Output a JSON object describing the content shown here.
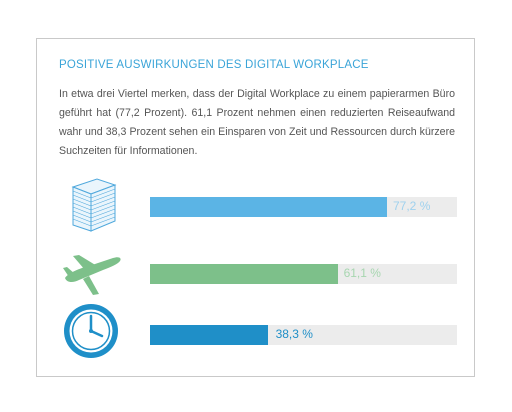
{
  "title": "POSITIVE AUSWIRKUNGEN DES DIGITAL WORKPLACE",
  "description": "In etwa drei Viertel merken, dass der Digital Workplace zu einem papierarmen Büro geführt hat (77,2 Prozent). 61,1 Prozent nehmen einen reduzierten Reiseaufwand wahr und 38,3 Prozent sehen ein Einsparen von Zeit und Ressourcen durch kürzere Suchzeiten für Informationen.",
  "chart_data": {
    "type": "bar",
    "orientation": "horizontal",
    "categories": [
      "paper-stack-icon",
      "airplane-icon",
      "clock-icon"
    ],
    "values": [
      77.2,
      61.1,
      38.3
    ],
    "value_labels": [
      "77,2 %",
      "61,1 %",
      "38,3 %"
    ],
    "colors": [
      "#5bb4e5",
      "#7dc08a",
      "#1f8fc8"
    ],
    "label_colors": [
      "#9fd1ee",
      "#a7d6b0",
      "#1f8fc8"
    ],
    "label_position": [
      "inside-end",
      "inside-end",
      "outside-end"
    ],
    "xlim": [
      0,
      100
    ],
    "track_color": "#ececec",
    "title": "POSITIVE AUSWIRKUNGEN DES DIGITAL WORKPLACE"
  }
}
